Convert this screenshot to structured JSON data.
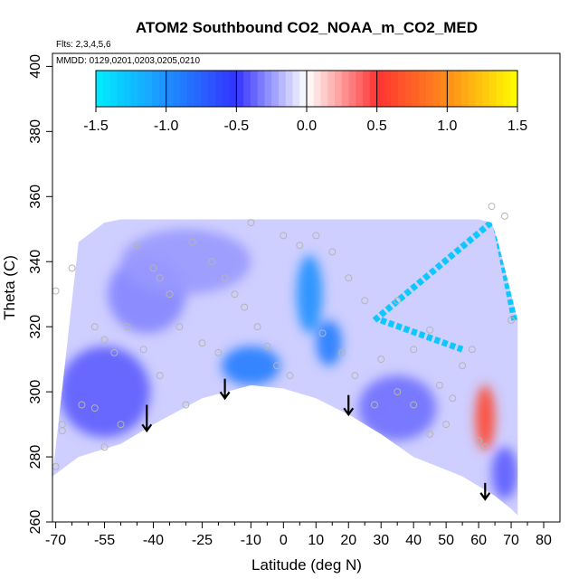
{
  "chart_data": {
    "type": "heatmap",
    "title": "ATOM2 Southbound CO2_NOAA_m_CO2_MED",
    "subtitle_flights": "Flts: 2,3,4,5,6",
    "subtitle_dates": "MMDD: 0129,0201,0203,0205,0210",
    "xlabel": "Latitude (deg N)",
    "ylabel": "Theta (C)",
    "xlim": [
      -71,
      85
    ],
    "ylim": [
      260,
      404
    ],
    "x_ticks": [
      -70,
      -55,
      -40,
      -25,
      -10,
      0,
      10,
      20,
      30,
      40,
      50,
      60,
      70,
      80
    ],
    "x_tick_labels": [
      "-70",
      "-55",
      "-40",
      "-25",
      "-10",
      "0",
      "10",
      "20",
      "30",
      "40",
      "50",
      "60",
      "70",
      "80"
    ],
    "x_minor_ticks": [
      -65,
      -60,
      -50,
      -45,
      -35,
      -30,
      -20,
      -15,
      -5,
      5,
      15,
      25,
      35,
      45,
      55,
      65,
      75
    ],
    "y_ticks": [
      260,
      280,
      300,
      320,
      340,
      360,
      380,
      400
    ],
    "y_tick_labels": [
      "260",
      "280",
      "300",
      "320",
      "340",
      "360",
      "380",
      "400"
    ],
    "colorbar": {
      "range": [
        -1.5,
        1.5
      ],
      "ticks": [
        -1.5,
        -1.0,
        -0.5,
        0.0,
        0.5,
        1.0,
        1.5
      ],
      "tick_labels": [
        "-1.5",
        "-1.0",
        "-0.5",
        "0.0",
        "0.5",
        "1.0",
        "1.5"
      ],
      "stops": [
        {
          "value": -1.5,
          "color": "#00eeff"
        },
        {
          "value": -1.0,
          "color": "#1e90ff"
        },
        {
          "value": -0.5,
          "color": "#3333ff"
        },
        {
          "value": 0.0,
          "color": "#ffffff"
        },
        {
          "value": 0.5,
          "color": "#ff3333"
        },
        {
          "value": 1.0,
          "color": "#ff8c1a"
        },
        {
          "value": 1.5,
          "color": "#ffff00"
        }
      ]
    },
    "field_extent": {
      "lat_range": [
        -71,
        72
      ],
      "theta_top": [
        [
          -63,
          346
        ],
        [
          -55,
          352
        ],
        [
          -50,
          353
        ],
        [
          0,
          353
        ],
        [
          20,
          353
        ],
        [
          60,
          353
        ],
        [
          64,
          352
        ],
        [
          66,
          346
        ],
        [
          72,
          322
        ]
      ],
      "theta_bottom": [
        [
          -71,
          274
        ],
        [
          -63,
          280
        ],
        [
          -50,
          284
        ],
        [
          -40,
          290
        ],
        [
          -25,
          298
        ],
        [
          -10,
          302
        ],
        [
          0,
          301
        ],
        [
          10,
          298
        ],
        [
          20,
          293
        ],
        [
          30,
          287
        ],
        [
          40,
          280
        ],
        [
          50,
          276
        ],
        [
          55,
          274
        ],
        [
          65,
          268
        ],
        [
          70,
          264
        ],
        [
          72,
          262
        ]
      ]
    },
    "field_blobs": [
      {
        "name": "southern-high-latitude-negative",
        "lat": -55,
        "theta": 300,
        "lat_spread": 14,
        "theta_spread": 14,
        "value": -0.4
      },
      {
        "name": "southern-midlatitude-negative",
        "lat": -42,
        "theta": 330,
        "lat_spread": 12,
        "theta_spread": 12,
        "value": -0.3
      },
      {
        "name": "southern-upper-negative",
        "lat": -30,
        "theta": 340,
        "lat_spread": 20,
        "theta_spread": 10,
        "value": -0.25
      },
      {
        "name": "tropical-lower-strong-negative",
        "lat": -10,
        "theta": 308,
        "lat_spread": 9,
        "theta_spread": 6,
        "value": -0.9
      },
      {
        "name": "tropical-upper-strong-negative",
        "lat": 8,
        "theta": 330,
        "lat_spread": 4,
        "theta_spread": 12,
        "value": -1.0
      },
      {
        "name": "tropical-lower-band-negative",
        "lat": 14,
        "theta": 315,
        "lat_spread": 4,
        "theta_spread": 7,
        "value": -0.9
      },
      {
        "name": "northern-subtropical-negative",
        "lat": 35,
        "theta": 295,
        "lat_spread": 12,
        "theta_spread": 10,
        "value": -0.35
      },
      {
        "name": "northern-arctic-positive",
        "lat": 62,
        "theta": 292,
        "lat_spread": 3,
        "theta_spread": 10,
        "value": 0.6
      },
      {
        "name": "northern-arctic-lower-negative",
        "lat": 68,
        "theta": 275,
        "lat_spread": 4,
        "theta_spread": 8,
        "value": -0.4
      }
    ],
    "contour_lines": [
      {
        "name": "northern-tropopause-diagonal",
        "points": [
          [
            28,
            322
          ],
          [
            65,
            353
          ]
        ],
        "value": -1.3
      },
      {
        "name": "northern-tropopause-vertical",
        "points": [
          [
            65,
            353
          ],
          [
            71,
            322
          ]
        ],
        "value": -1.3
      },
      {
        "name": "northern-tropopause-lower",
        "points": [
          [
            30,
            322
          ],
          [
            55,
            313
          ]
        ],
        "value": -1.3
      }
    ],
    "flight_markers": [
      {
        "lat": -70,
        "theta": 331
      },
      {
        "lat": -65,
        "theta": 338
      },
      {
        "lat": -58,
        "theta": 320
      },
      {
        "lat": -55,
        "theta": 316
      },
      {
        "lat": -52,
        "theta": 312
      },
      {
        "lat": -62,
        "theta": 296
      },
      {
        "lat": -68,
        "theta": 290
      },
      {
        "lat": -70,
        "theta": 277
      },
      {
        "lat": -68,
        "theta": 288
      },
      {
        "lat": -55,
        "theta": 283
      },
      {
        "lat": -45,
        "theta": 345
      },
      {
        "lat": -40,
        "theta": 338
      },
      {
        "lat": -38,
        "theta": 335
      },
      {
        "lat": -35,
        "theta": 330
      },
      {
        "lat": -48,
        "theta": 320
      },
      {
        "lat": -43,
        "theta": 313
      },
      {
        "lat": -38,
        "theta": 305
      },
      {
        "lat": -30,
        "theta": 296
      },
      {
        "lat": -28,
        "theta": 346
      },
      {
        "lat": -22,
        "theta": 340
      },
      {
        "lat": -18,
        "theta": 335
      },
      {
        "lat": -15,
        "theta": 330
      },
      {
        "lat": -12,
        "theta": 326
      },
      {
        "lat": -8,
        "theta": 320
      },
      {
        "lat": -5,
        "theta": 314
      },
      {
        "lat": -2,
        "theta": 308
      },
      {
        "lat": 2,
        "theta": 305
      },
      {
        "lat": -10,
        "theta": 352
      },
      {
        "lat": 0,
        "theta": 348
      },
      {
        "lat": 5,
        "theta": 345
      },
      {
        "lat": 10,
        "theta": 348
      },
      {
        "lat": 15,
        "theta": 343
      },
      {
        "lat": 20,
        "theta": 335
      },
      {
        "lat": 25,
        "theta": 328
      },
      {
        "lat": 18,
        "theta": 312
      },
      {
        "lat": 22,
        "theta": 305
      },
      {
        "lat": 12,
        "theta": 318
      },
      {
        "lat": 30,
        "theta": 310
      },
      {
        "lat": 35,
        "theta": 300
      },
      {
        "lat": 40,
        "theta": 296
      },
      {
        "lat": 45,
        "theta": 287
      },
      {
        "lat": 50,
        "theta": 290
      },
      {
        "lat": 55,
        "theta": 308
      },
      {
        "lat": 58,
        "theta": 313
      },
      {
        "lat": 60,
        "theta": 285
      },
      {
        "lat": 62,
        "theta": 283
      },
      {
        "lat": 64,
        "theta": 357
      },
      {
        "lat": 68,
        "theta": 354
      },
      {
        "lat": 70,
        "theta": 322
      },
      {
        "lat": 45,
        "theta": 319
      },
      {
        "lat": 35,
        "theta": 328
      },
      {
        "lat": 40,
        "theta": 313
      },
      {
        "lat": -25,
        "theta": 315
      },
      {
        "lat": -58,
        "theta": 295
      },
      {
        "lat": -50,
        "theta": 290
      },
      {
        "lat": -32,
        "theta": 320
      },
      {
        "lat": 48,
        "theta": 302
      },
      {
        "lat": 52,
        "theta": 298
      },
      {
        "lat": -20,
        "theta": 312
      },
      {
        "lat": 28,
        "theta": 296
      }
    ],
    "arrows": [
      {
        "lat": -42,
        "theta_start": 296,
        "theta_end": 288
      },
      {
        "lat": -18,
        "theta_start": 304,
        "theta_end": 298
      },
      {
        "lat": 20,
        "theta_start": 299,
        "theta_end": 293
      },
      {
        "lat": 62,
        "theta_start": 272,
        "theta_end": 267
      }
    ]
  }
}
